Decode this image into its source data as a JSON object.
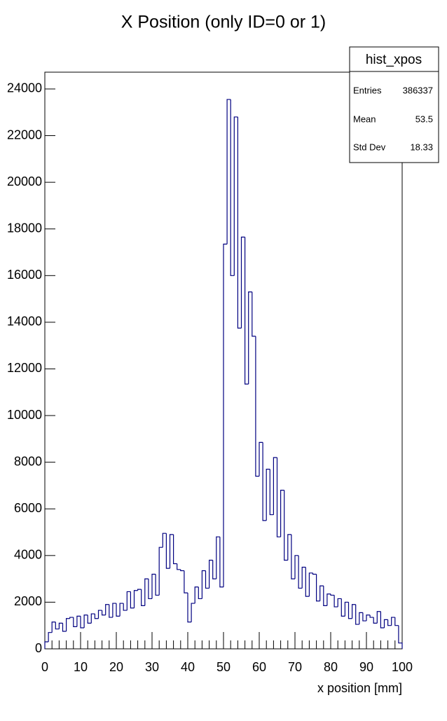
{
  "chart_data": {
    "type": "histogram",
    "title": "X Position (only ID=0 or 1)",
    "x_label": "x position [mm]",
    "color": "#000080",
    "bins": [
      0,
      1,
      2,
      3,
      4,
      5,
      6,
      7,
      8,
      9,
      10,
      11,
      12,
      13,
      14,
      15,
      16,
      17,
      18,
      19,
      20,
      21,
      22,
      23,
      24,
      25,
      26,
      27,
      28,
      29,
      30,
      31,
      32,
      33,
      34,
      35,
      36,
      37,
      38,
      39,
      40,
      41,
      42,
      43,
      44,
      45,
      46,
      47,
      48,
      49,
      50,
      51,
      52,
      53,
      54,
      55,
      56,
      57,
      58,
      59,
      60,
      61,
      62,
      63,
      64,
      65,
      66,
      67,
      68,
      69,
      70,
      71,
      72,
      73,
      74,
      75,
      76,
      77,
      78,
      79,
      80,
      81,
      82,
      83,
      84,
      85,
      86,
      87,
      88,
      89,
      90,
      91,
      92,
      93,
      94,
      95,
      96,
      97,
      98,
      99,
      100
    ],
    "values": [
      300,
      700,
      1150,
      850,
      1100,
      750,
      1300,
      1350,
      950,
      1400,
      900,
      1450,
      1100,
      1500,
      1300,
      1650,
      1450,
      1900,
      1350,
      1950,
      1400,
      1950,
      1650,
      2450,
      1750,
      2500,
      2550,
      1850,
      3000,
      2150,
      3200,
      2300,
      4350,
      4950,
      3450,
      4900,
      3650,
      3400,
      3350,
      2400,
      1150,
      1950,
      2650,
      2150,
      3350,
      2600,
      3800,
      3000,
      4800,
      2650,
      17350,
      23550,
      16000,
      22800,
      13750,
      17650,
      11350,
      15300,
      13400,
      7400,
      8850,
      5500,
      7700,
      5750,
      8200,
      4800,
      6800,
      3800,
      4900,
      3000,
      4000,
      2600,
      3500,
      2250,
      3250,
      3200,
      2050,
      2700,
      1850,
      2350,
      2300,
      1800,
      2150,
      1400,
      2000,
      1300,
      1900,
      1050,
      1550,
      1200,
      1450,
      1350,
      1100,
      1600,
      900,
      1250,
      1000,
      1350,
      1000,
      250
    ],
    "xlim": [
      0,
      100
    ],
    "xticks": [
      0,
      10,
      20,
      30,
      40,
      50,
      60,
      70,
      80,
      90,
      100
    ],
    "ylim": [
      0,
      24720
    ],
    "yticks": [
      0,
      2000,
      4000,
      6000,
      8000,
      10000,
      12000,
      14000,
      16000,
      18000,
      20000,
      22000,
      24000
    ],
    "stats": {
      "name": "hist_xpos",
      "labels": [
        "Entries",
        "Mean",
        "Std Dev"
      ],
      "values": [
        386337,
        53.5,
        18.33
      ]
    }
  }
}
